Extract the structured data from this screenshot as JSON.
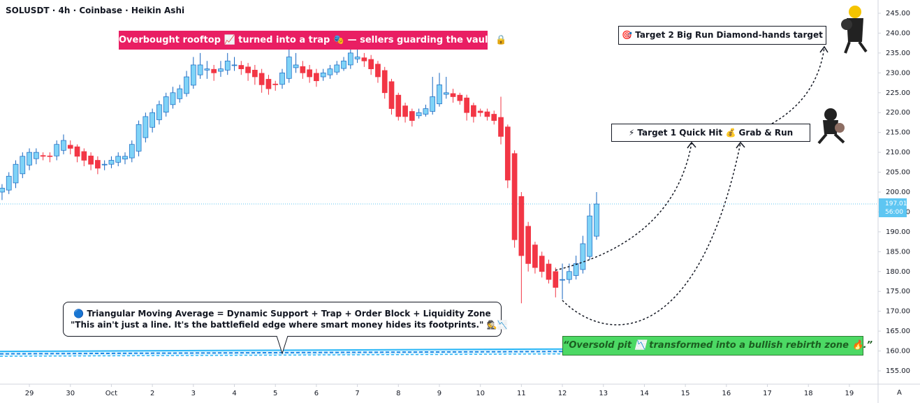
{
  "chart_data": {
    "type": "candlestick",
    "title": "SOLUSDT · 4h · Coinbase · Heikin Ashi",
    "xlim": [
      -0.3,
      128.2
    ],
    "xticks": [
      {
        "value": 4,
        "label": "29"
      },
      {
        "value": 10,
        "label": "30"
      },
      {
        "value": 16,
        "label": "Oct"
      },
      {
        "value": 22,
        "label": "2"
      },
      {
        "value": 28,
        "label": "3"
      },
      {
        "value": 34,
        "label": "4"
      },
      {
        "value": 40,
        "label": "5"
      },
      {
        "value": 46,
        "label": "6"
      },
      {
        "value": 52,
        "label": "7"
      },
      {
        "value": 58,
        "label": "8"
      },
      {
        "value": 64,
        "label": "9"
      },
      {
        "value": 70,
        "label": "10"
      },
      {
        "value": 76,
        "label": "11"
      },
      {
        "value": 82,
        "label": "12"
      },
      {
        "value": 88,
        "label": "13"
      },
      {
        "value": 94,
        "label": "14"
      },
      {
        "value": 100,
        "label": "15"
      },
      {
        "value": 106,
        "label": "16"
      },
      {
        "value": 112,
        "label": "17"
      },
      {
        "value": 118,
        "label": "18"
      },
      {
        "value": 124,
        "label": "19"
      }
    ],
    "ylim": [
      155,
      245
    ],
    "yticks": [
      {
        "value": 155,
        "label": "155.00"
      },
      {
        "value": 160,
        "label": "160.00"
      },
      {
        "value": 165,
        "label": "165.00"
      },
      {
        "value": 170,
        "label": "170.00"
      },
      {
        "value": 175,
        "label": "175.00"
      },
      {
        "value": 180,
        "label": "180.00"
      },
      {
        "value": 185,
        "label": "185.00"
      },
      {
        "value": 190,
        "label": "190.00"
      },
      {
        "value": 195,
        "label": "195.00"
      },
      {
        "value": 200,
        "label": "200.00"
      },
      {
        "value": 205,
        "label": "205.00"
      },
      {
        "value": 210,
        "label": "210.00"
      },
      {
        "value": 215,
        "label": "215.00"
      },
      {
        "value": 220,
        "label": "220.00"
      },
      {
        "value": 225,
        "label": "225.00"
      },
      {
        "value": 230,
        "label": "230.00"
      },
      {
        "value": 235,
        "label": "235.00"
      },
      {
        "value": 240,
        "label": "240.00"
      },
      {
        "value": 245,
        "label": "245.00"
      }
    ],
    "series": {
      "up_color": "#7fd3f7",
      "down_color": "#f23645",
      "open": [
        200,
        200.5,
        202.3,
        204.6,
        206.8,
        208.4,
        209.2,
        209.1,
        209.1,
        210.5,
        211.8,
        211.4,
        210.2,
        209.1,
        208,
        207,
        207,
        207.5,
        208.3,
        208.6,
        210.3,
        213.7,
        216.3,
        218.2,
        220.1,
        222,
        223.5,
        224.8,
        226.9,
        229.5,
        230.7,
        230.9,
        230.4,
        230.7,
        231.9,
        231.9,
        231.5,
        230.7,
        229.9,
        228.4,
        227.2,
        227.1,
        228.6,
        231.3,
        231.6,
        230.8,
        229.9,
        229,
        229.5,
        230.2,
        231.1,
        232,
        233.5,
        233.8,
        233.4,
        232.2,
        230.6,
        227.8,
        224.4,
        221.7,
        220.3,
        219.2,
        219.6,
        220.3,
        222.2,
        224.6,
        224.8,
        224.4,
        223.7,
        221.8,
        220.4,
        220.2,
        219.6,
        218.8,
        216.4,
        209.7,
        198.9,
        191.4,
        186.7,
        183.9,
        181.9,
        180,
        178,
        178,
        179,
        180.5,
        183.8,
        188.9
      ],
      "high": [
        202,
        205,
        208,
        210,
        211,
        211,
        210,
        210,
        213,
        214.5,
        213,
        212,
        211,
        210,
        209,
        208,
        209,
        210,
        210,
        213,
        218,
        220,
        221,
        223,
        225,
        226.5,
        227,
        230.5,
        234,
        235,
        233,
        232,
        233,
        235,
        234,
        233,
        232.5,
        232,
        231,
        229.5,
        228,
        231,
        236,
        235,
        233,
        232,
        231,
        231,
        232,
        233,
        234,
        236.5,
        236,
        235,
        234.5,
        233,
        231.5,
        228.5,
        225,
        222.5,
        221,
        221,
        222,
        229,
        230,
        229,
        226,
        225,
        224.5,
        222.5,
        221,
        221,
        220.5,
        224,
        217,
        210.5,
        200,
        192.5,
        187.5,
        185,
        183,
        181,
        182,
        182,
        184,
        189,
        197,
        200
      ],
      "low": [
        198,
        199.5,
        201,
        203.5,
        205.5,
        207,
        208,
        207.5,
        208,
        209.5,
        209.5,
        207.5,
        206.5,
        205.5,
        204.5,
        205.5,
        206,
        206.5,
        207,
        207.5,
        209,
        212.5,
        215,
        217,
        219,
        221,
        222.5,
        224,
        226,
        228.5,
        228.5,
        228,
        229,
        229.5,
        230.5,
        229.5,
        228,
        227,
        225,
        224.5,
        225.5,
        226,
        227.5,
        230,
        228.5,
        227.5,
        226.5,
        228,
        228.5,
        229.5,
        230.5,
        231,
        232.5,
        231.5,
        229.5,
        227.5,
        223.5,
        219.5,
        218,
        217.5,
        216.5,
        218.5,
        219,
        219.5,
        221.5,
        223.5,
        222.5,
        222,
        218,
        217.5,
        219,
        218,
        217,
        212,
        201,
        186,
        172,
        180,
        179.5,
        178.5,
        177,
        173.5,
        173,
        177,
        178,
        179.5,
        183,
        188
      ],
      "close": [
        201,
        204,
        207,
        209,
        210,
        210,
        209,
        209,
        212,
        213,
        211,
        209,
        208,
        207,
        206,
        207,
        208,
        209,
        209,
        212,
        217,
        219,
        220,
        222,
        224,
        225,
        226,
        229,
        232,
        232,
        231,
        230,
        231,
        233,
        232,
        231,
        230,
        229,
        227,
        226,
        227,
        230,
        234,
        232,
        230,
        229,
        228,
        230,
        231,
        232,
        233,
        235,
        234,
        233,
        231,
        229,
        225,
        221,
        219,
        219,
        218,
        220,
        221,
        224,
        227,
        225,
        224,
        223,
        220,
        219,
        220,
        219,
        218,
        214,
        203,
        188,
        184,
        182,
        181,
        180,
        178,
        176,
        178,
        180,
        182,
        187,
        194,
        197
      ]
    },
    "overlay_line": {
      "x": [
        -0.3,
        82
      ],
      "values": [
        159.9,
        160.5
      ],
      "color": "#29b6f6"
    },
    "last_price": 197.01,
    "countdown": "56:00",
    "annotations": {
      "top_banner": "Overbought rooftop 📈 turned into a trap 🎭 — sellers guarding the vault 🔒",
      "target_2": "🎯 Target 2 Big Run Diamond-hands target",
      "target_1": "⚡ Target 1 Quick Hit 💰 Grab & Run",
      "callout": [
        "🔵 Triangular Moving Average = Dynamic Support + Trap + Order Block + Liquidity Zone",
        "\"This ain't just a line. It's the battlefield edge where smart money hides its footprints.\" 🕵️📉"
      ],
      "green_box": "“Oversold pit 📉 transformed into a bullish rebirth zone 🔥.”"
    },
    "scale_mode": "A"
  }
}
